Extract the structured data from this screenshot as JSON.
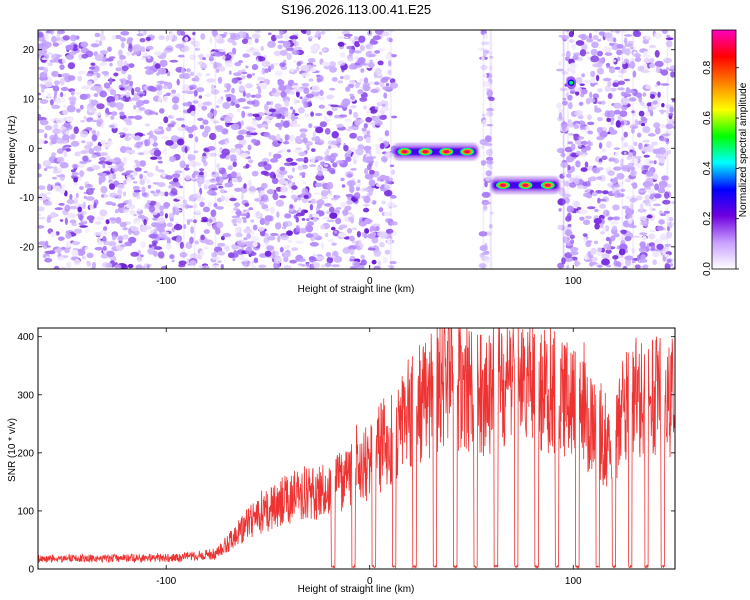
{
  "title": "S196.2026.113.00.41.E25",
  "chart_data": [
    {
      "type": "heatmap",
      "xlabel": "Height of straight line (km)",
      "ylabel": "Frequency (Hz)",
      "xlim": [
        -163,
        150
      ],
      "ylim": [
        -24.5,
        24
      ],
      "xticks": [
        -100,
        0,
        100
      ],
      "yticks": [
        -20,
        -10,
        0,
        10,
        20
      ],
      "colorbar": {
        "label": "Normalized spectral amplitude",
        "range": [
          0,
          0.95
        ],
        "ticks": [
          0.0,
          0.2,
          0.4,
          0.6,
          0.8
        ],
        "colors": [
          "#ffffff",
          "#c8a0ff",
          "#7000e0",
          "#0000ff",
          "#00ffff",
          "#00ff00",
          "#ffff00",
          "#ff8000",
          "#ff0000",
          "#ff00c0"
        ]
      },
      "noise_regions_km": [
        [
          -163,
          12
        ],
        [
          55,
          60
        ],
        [
          93,
          101
        ],
        [
          101,
          150
        ]
      ],
      "signal_bands": [
        {
          "x_range_km": [
            12,
            53
          ],
          "frequency_hz": -0.7,
          "peak_amplitude": 0.9
        },
        {
          "x_range_km": [
            60,
            93
          ],
          "frequency_hz": -7.5,
          "peak_amplitude": 0.9
        },
        {
          "x_range_km": [
            98,
            100
          ],
          "frequency_hz": 13.3,
          "peak_amplitude": 0.5
        }
      ]
    },
    {
      "type": "line",
      "xlabel": "Height of straight line (km)",
      "ylabel": "SNR (10 * v/v)",
      "xlim": [
        -163,
        150
      ],
      "ylim": [
        0,
        415
      ],
      "xticks": [
        -100,
        0,
        100
      ],
      "yticks": [
        0,
        100,
        200,
        300,
        400
      ],
      "color": "#ee3333",
      "envelope": {
        "x_km": [
          -163,
          -95,
          -75,
          -60,
          -40,
          -20,
          -5,
          10,
          25,
          40,
          55,
          70,
          90,
          105,
          118,
          130,
          150
        ],
        "snr": [
          20,
          22,
          30,
          90,
          140,
          160,
          190,
          260,
          330,
          380,
          340,
          360,
          350,
          300,
          250,
          350,
          330
        ]
      },
      "dropout_km": [
        -18,
        -8,
        2,
        12,
        22,
        32,
        42,
        52,
        62,
        72,
        82,
        92,
        102,
        112,
        120,
        128,
        136,
        144
      ]
    }
  ]
}
